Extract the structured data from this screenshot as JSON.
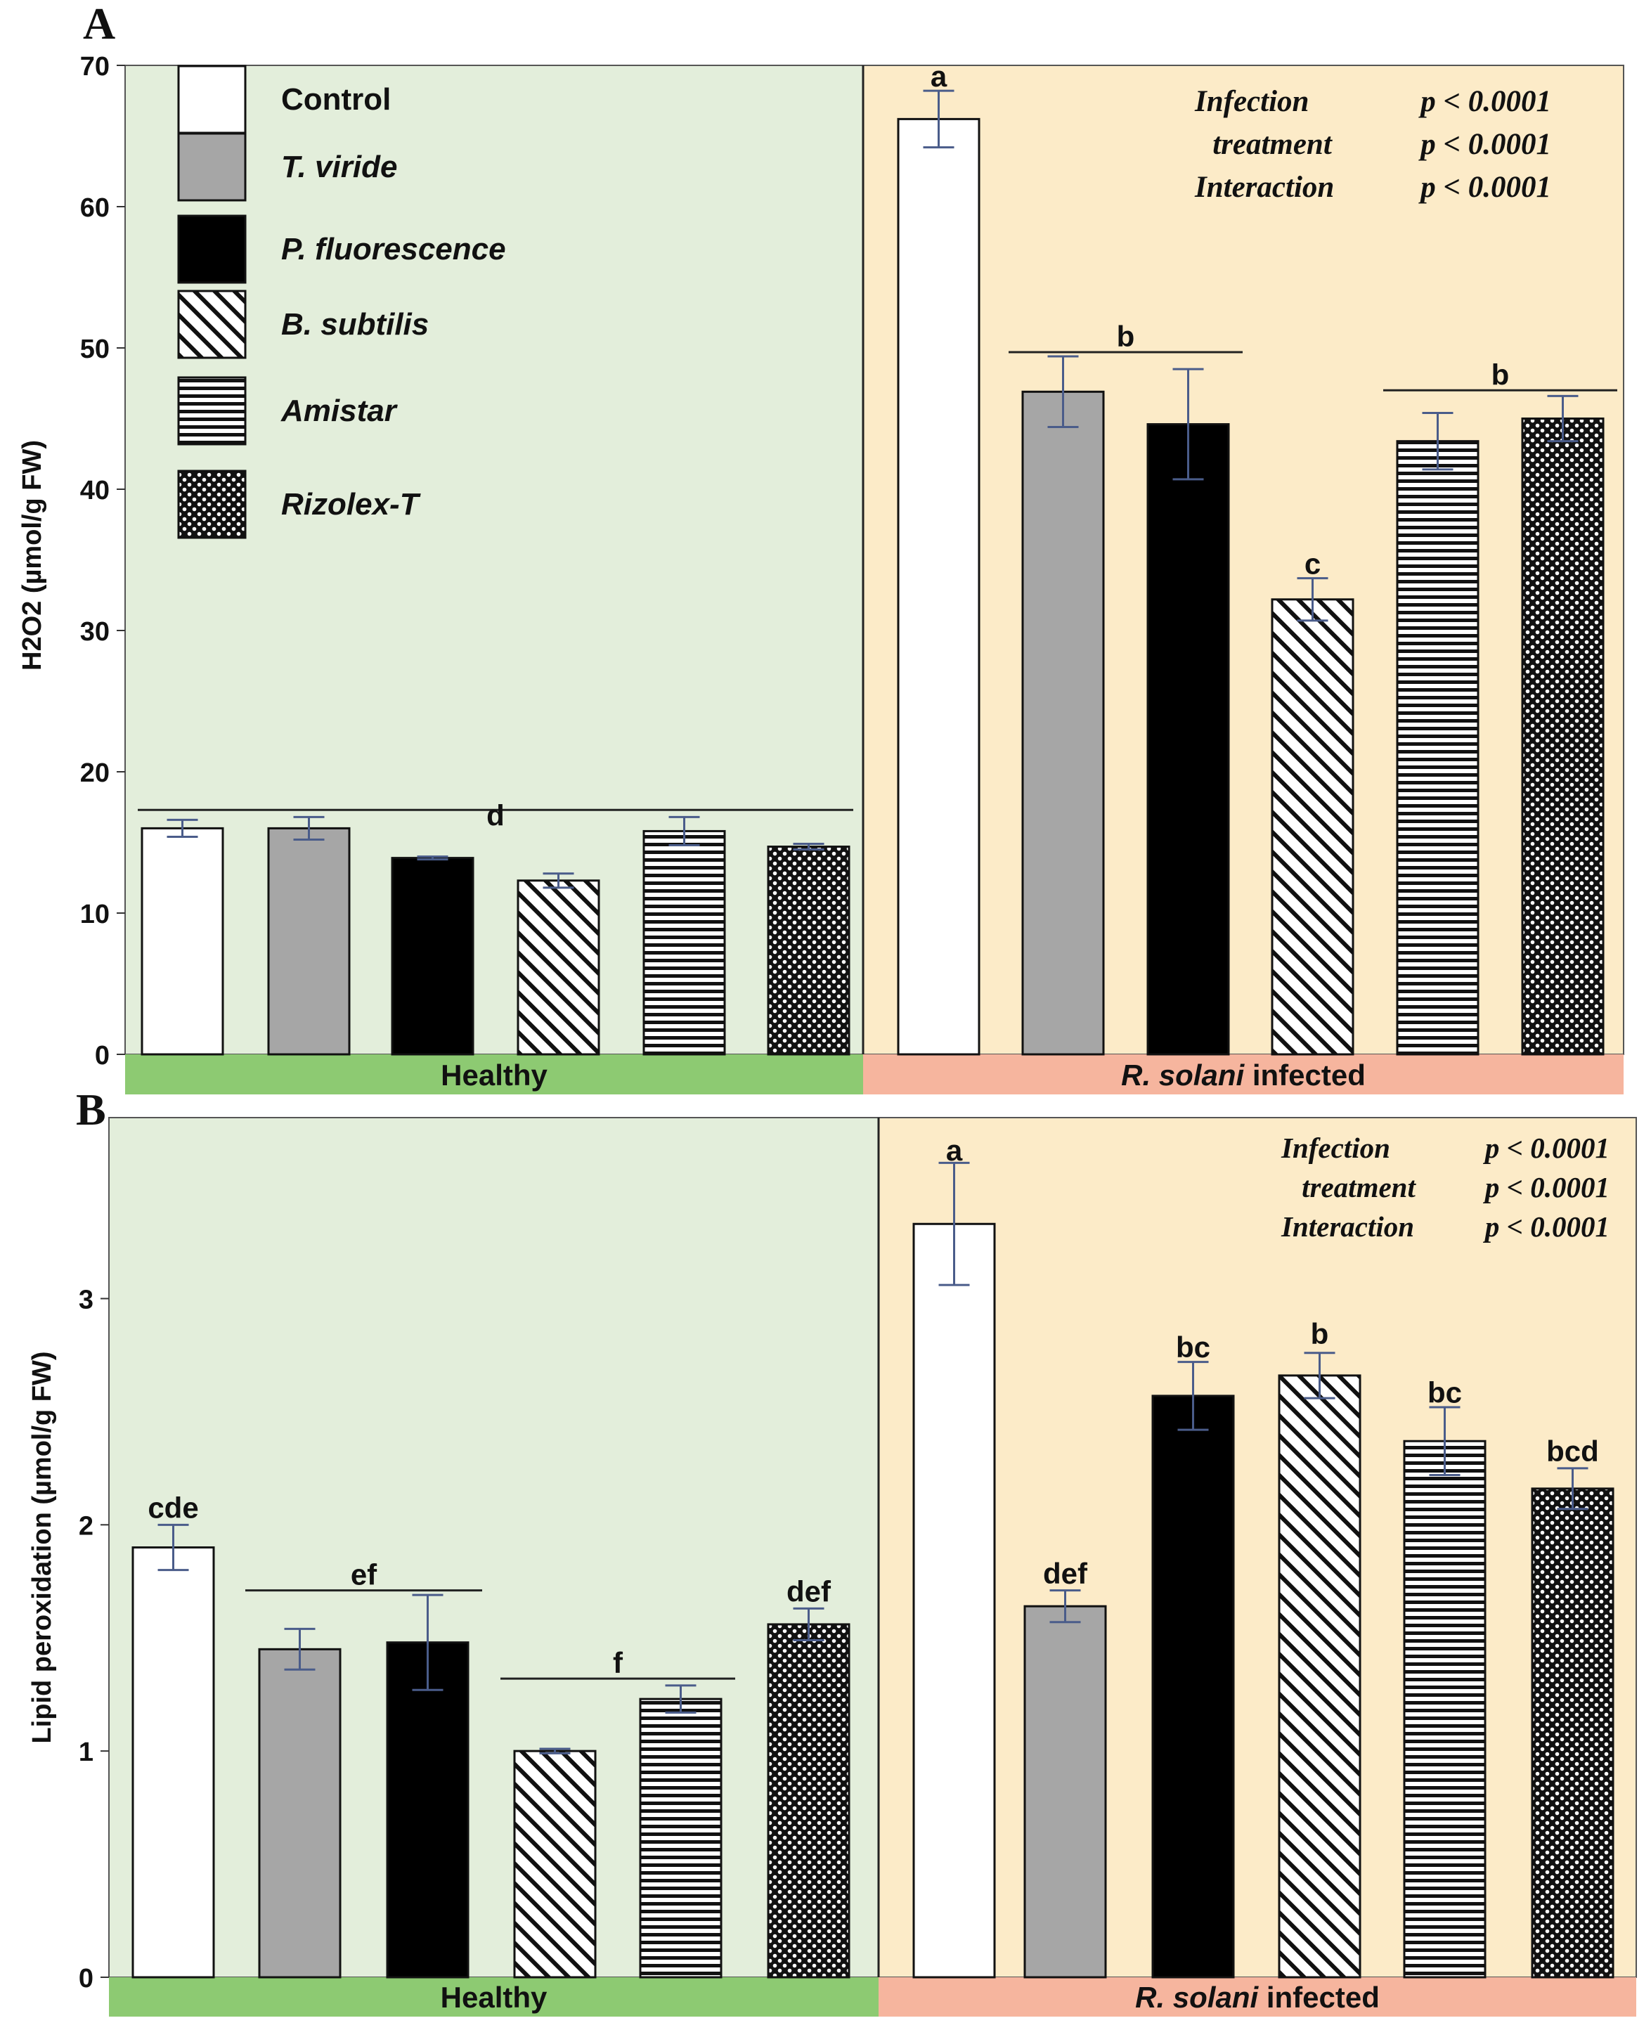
{
  "colors": {
    "healthy_bg": "#e3eedb",
    "infected_bg": "#fcebc8",
    "healthy_bar": "#8dca72",
    "infected_bar": "#f6b59e",
    "error_bar": "#4a5c8a",
    "grey_fill": "#a6a6a6"
  },
  "legend": [
    {
      "label": "Control",
      "pattern": "white"
    },
    {
      "label": "T. viride",
      "pattern": "grey"
    },
    {
      "label": "P. fluorescence",
      "pattern": "black"
    },
    {
      "label": "B. subtilis",
      "pattern": "diag"
    },
    {
      "label": "Amistar",
      "pattern": "horiz"
    },
    {
      "label": "Rizolex-T",
      "pattern": "dots"
    }
  ],
  "chart_data": [
    {
      "type": "bar",
      "panel_label": "A",
      "ylabel": "H2O2 (µmol/g FW)",
      "ylim": [
        0,
        70
      ],
      "yticks": [
        0,
        10,
        20,
        30,
        40,
        50,
        60,
        70
      ],
      "groups": [
        {
          "name": "Healthy",
          "label_parts": [
            {
              "text": "Healthy",
              "italic": false
            }
          ]
        },
        {
          "name": "R. solani infected",
          "label_parts": [
            {
              "text": "R. solani",
              "italic": true
            },
            {
              "text": " infected",
              "italic": false
            }
          ]
        }
      ],
      "series": [
        "Control",
        "T. viride",
        "P. fluorescence",
        "B. subtilis",
        "Amistar",
        "Rizolex-T"
      ],
      "values": [
        [
          16.0,
          16.0,
          13.9,
          12.3,
          15.8,
          14.7
        ],
        [
          66.2,
          46.9,
          44.6,
          32.2,
          43.4,
          45.0
        ]
      ],
      "errors": [
        [
          0.6,
          0.8,
          0.1,
          0.5,
          1.0,
          0.2
        ],
        [
          2.0,
          2.5,
          3.9,
          1.5,
          2.0,
          1.6
        ]
      ],
      "letters": [
        {
          "text": "d",
          "group": 0,
          "from": 0,
          "to": 5,
          "line": true,
          "value": 17.3
        },
        {
          "text": "a",
          "group": 1,
          "from": 0,
          "to": 0,
          "line": false,
          "value": 68.5
        },
        {
          "text": "b",
          "group": 1,
          "from": 1,
          "to": 2,
          "line": true,
          "value": 49.7
        },
        {
          "text": "c",
          "group": 1,
          "from": 3,
          "to": 3,
          "line": false,
          "value": 34.0
        },
        {
          "text": "b",
          "group": 1,
          "from": 4,
          "to": 5,
          "line": true,
          "value": 47.0
        }
      ],
      "stats": [
        {
          "term": "Infection",
          "p": "p < 0.0001"
        },
        {
          "term": "treatment",
          "p": "p < 0.0001"
        },
        {
          "term": "Interaction",
          "p": "p < 0.0001"
        }
      ]
    },
    {
      "type": "bar",
      "panel_label": "B",
      "ylabel": "Lipid peroxidation  (µmol/g FW)",
      "ylim": [
        0,
        3.8
      ],
      "yticks": [
        0,
        1,
        2,
        3
      ],
      "groups": [
        {
          "name": "Healthy",
          "label_parts": [
            {
              "text": "Healthy",
              "italic": false
            }
          ]
        },
        {
          "name": "R. solani infected",
          "label_parts": [
            {
              "text": "R. solani",
              "italic": true
            },
            {
              "text": " infected",
              "italic": false
            }
          ]
        }
      ],
      "series": [
        "Control",
        "T. viride",
        "P. fluorescence",
        "B. subtilis",
        "Amistar",
        "Rizolex-T"
      ],
      "values": [
        [
          1.9,
          1.45,
          1.48,
          1.0,
          1.23,
          1.56
        ],
        [
          3.33,
          1.64,
          2.57,
          2.66,
          2.37,
          2.16
        ]
      ],
      "errors": [
        [
          0.1,
          0.09,
          0.21,
          0.01,
          0.06,
          0.07
        ],
        [
          0.27,
          0.07,
          0.15,
          0.1,
          0.15,
          0.09
        ]
      ],
      "letters": [
        {
          "text": "cde",
          "group": 0,
          "from": 0,
          "to": 0,
          "line": false,
          "value": 2.03
        },
        {
          "text": "ef",
          "group": 0,
          "from": 1,
          "to": 2,
          "line": true,
          "value": 1.71
        },
        {
          "text": "f",
          "group": 0,
          "from": 3,
          "to": 4,
          "line": true,
          "value": 1.32
        },
        {
          "text": "def",
          "group": 0,
          "from": 5,
          "to": 5,
          "line": false,
          "value": 1.66
        },
        {
          "text": "a",
          "group": 1,
          "from": 0,
          "to": 0,
          "line": false,
          "value": 3.61
        },
        {
          "text": "def",
          "group": 1,
          "from": 1,
          "to": 1,
          "line": false,
          "value": 1.74
        },
        {
          "text": "bc",
          "group": 1,
          "from": 2,
          "to": 2,
          "line": false,
          "value": 2.74
        },
        {
          "text": "b",
          "group": 1,
          "from": 3,
          "to": 3,
          "line": false,
          "value": 2.8
        },
        {
          "text": "bc",
          "group": 1,
          "from": 4,
          "to": 4,
          "line": false,
          "value": 2.54
        },
        {
          "text": "bcd",
          "group": 1,
          "from": 5,
          "to": 5,
          "line": false,
          "value": 2.28
        }
      ],
      "stats": [
        {
          "term": "Infection",
          "p": "p < 0.0001"
        },
        {
          "term": "treatment",
          "p": "p < 0.0001"
        },
        {
          "term": "Interaction",
          "p": "p < 0.0001"
        }
      ]
    }
  ]
}
